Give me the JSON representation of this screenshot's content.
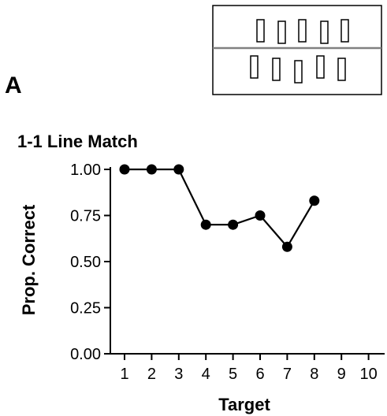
{
  "panel_label": "A",
  "chart_data": {
    "type": "line",
    "title": "1-1 Line Match",
    "xlabel": "Target",
    "ylabel": "Prop. Correct",
    "x": [
      1,
      2,
      3,
      4,
      5,
      6,
      7,
      8
    ],
    "series": [
      {
        "values": [
          1.0,
          1.0,
          1.0,
          0.7,
          0.7,
          0.75,
          0.58,
          0.83
        ]
      }
    ],
    "xticks": [
      "1",
      "2",
      "3",
      "4",
      "5",
      "6",
      "7",
      "8",
      "9",
      "10"
    ],
    "yticks": [
      "0.00",
      "0.25",
      "0.50",
      "0.75",
      "1.00"
    ],
    "xlim": [
      0.5,
      10.5
    ],
    "ylim": [
      0,
      1
    ],
    "grid": false,
    "legend": "none",
    "line_color": "#000000",
    "marker_color": "#000000"
  },
  "stimulus_inset": {
    "top_row_count": 5,
    "bottom_row_count": 5,
    "divider_color": "#808080"
  }
}
